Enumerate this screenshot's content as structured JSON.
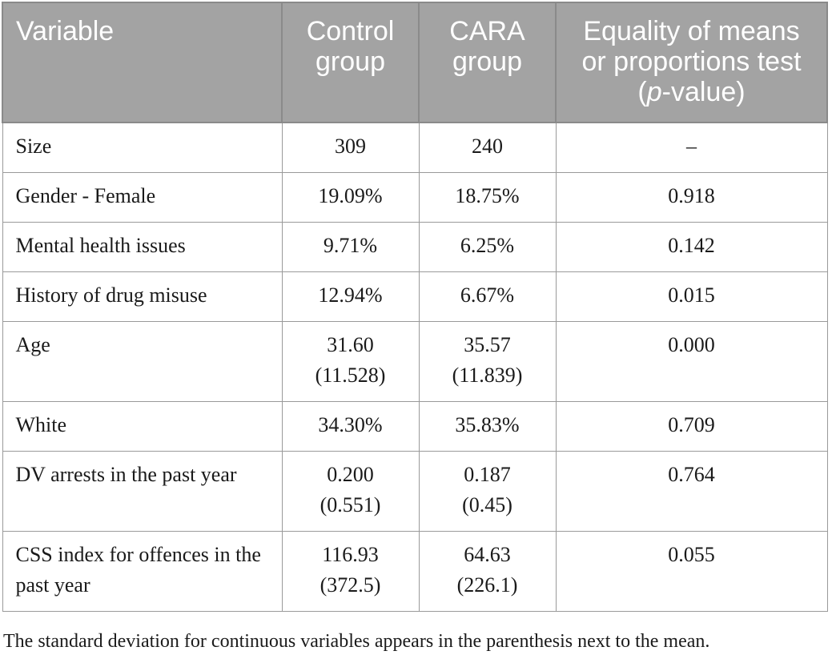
{
  "table": {
    "headers": {
      "variable": "Variable",
      "control": "Control group",
      "cara": "CARA group",
      "test_prefix": "Equality of means or proportions test (",
      "test_p": "p",
      "test_suffix": "-value)"
    },
    "rows": [
      {
        "variable": "Size",
        "control": "309",
        "control_sd": "",
        "cara": "240",
        "cara_sd": "",
        "test": "–"
      },
      {
        "variable": "Gender - Female",
        "control": "19.09%",
        "control_sd": "",
        "cara": "18.75%",
        "cara_sd": "",
        "test": "0.918"
      },
      {
        "variable": "Mental health issues",
        "control": "9.71%",
        "control_sd": "",
        "cara": "6.25%",
        "cara_sd": "",
        "test": "0.142"
      },
      {
        "variable": "History of drug misuse",
        "control": "12.94%",
        "control_sd": "",
        "cara": "6.67%",
        "cara_sd": "",
        "test": "0.015"
      },
      {
        "variable": "Age",
        "control": "31.60",
        "control_sd": "(11.528)",
        "cara": "35.57",
        "cara_sd": "(11.839)",
        "test": "0.000"
      },
      {
        "variable": "White",
        "control": "34.30%",
        "control_sd": "",
        "cara": "35.83%",
        "cara_sd": "",
        "test": "0.709"
      },
      {
        "variable": "DV arrests in the past year",
        "control": "0.200",
        "control_sd": "(0.551)",
        "cara": "0.187",
        "cara_sd": "(0.45)",
        "test": "0.764"
      },
      {
        "variable": "CSS index for offences in the past year",
        "control": "116.93",
        "control_sd": "(372.5)",
        "cara": "64.63",
        "cara_sd": "(226.1)",
        "test": "0.055"
      }
    ]
  },
  "caption": "The standard deviation for continuous variables appears in the parenthesis next to the mean."
}
